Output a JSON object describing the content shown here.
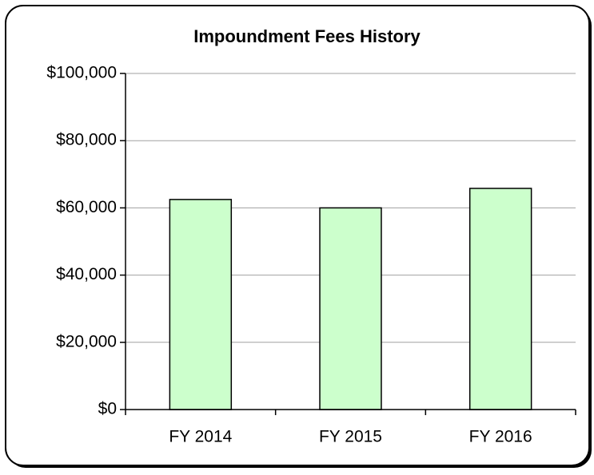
{
  "chart_data": {
    "type": "bar",
    "title": "Impoundment Fees History",
    "categories": [
      "FY 2014",
      "FY 2015",
      "FY 2016"
    ],
    "values": [
      62500,
      60000,
      65800
    ],
    "color": "#ccffcc",
    "ylim": [
      0,
      100000
    ],
    "yticks": [
      {
        "value": 0,
        "label": "$0"
      },
      {
        "value": 20000,
        "label": "$20,000"
      },
      {
        "value": 40000,
        "label": "$40,000"
      },
      {
        "value": 60000,
        "label": "$60,000"
      },
      {
        "value": 80000,
        "label": "$80,000"
      },
      {
        "value": 100000,
        "label": "$100,000"
      }
    ],
    "grid": true
  }
}
